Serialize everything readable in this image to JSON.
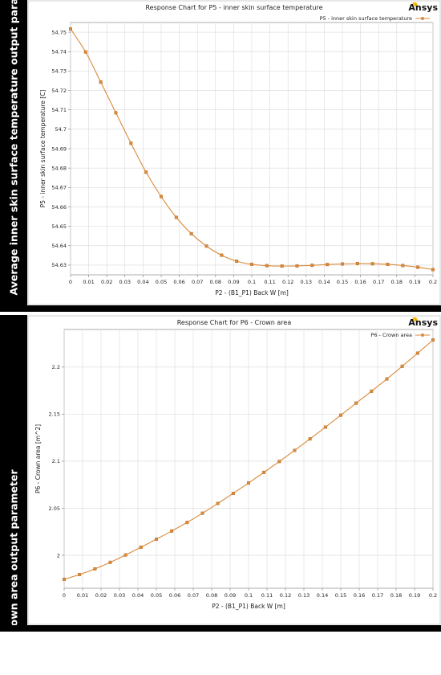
{
  "side_labels": {
    "top": "Average inner skin surface temperature output parameter",
    "bottom": "Crown area output parameter"
  },
  "brand": {
    "logo_text": "Ansys",
    "accent_color": "#f5b800"
  },
  "chart_data": [
    {
      "type": "line",
      "title": "Response Chart for P5 - inner skin surface temperature",
      "xlabel": "P2 - (B1_P1) Back W  [m]",
      "ylabel": "P5 - inner skin surface temperature  [C]",
      "xlim": [
        0,
        0.2
      ],
      "ylim": [
        54.625,
        54.755
      ],
      "xticks": [
        0,
        0.01,
        0.02,
        0.03,
        0.04,
        0.05,
        0.06,
        0.07,
        0.08,
        0.09,
        0.1,
        0.11,
        0.12,
        0.13,
        0.14,
        0.15,
        0.16,
        0.17,
        0.18,
        0.19,
        0.2
      ],
      "xtick_labels": [
        "0",
        "0.01",
        "0.02",
        "0.03",
        "0.04",
        "0.05",
        "0.06",
        "0.07",
        "0.08",
        "0.09",
        "0.1",
        "0.11",
        "0.12",
        "0.13",
        "0.14",
        "0.15",
        "0.16",
        "0.17",
        "0.18",
        "0.19",
        "0.2"
      ],
      "yticks": [
        54.63,
        54.64,
        54.65,
        54.66,
        54.67,
        54.68,
        54.69,
        54.7,
        54.71,
        54.72,
        54.73,
        54.74,
        54.75
      ],
      "ytick_labels": [
        "54.63",
        "54.64",
        "54.65",
        "54.66",
        "54.67",
        "54.68",
        "54.69",
        "54.7",
        "54.71",
        "54.72",
        "54.73",
        "54.74",
        "54.75"
      ],
      "grid": true,
      "legend_position": "top-right",
      "color": "#d98a3a",
      "series": [
        {
          "name": "P5 - inner skin surface temperature",
          "x": [
            0,
            0.00833,
            0.01667,
            0.025,
            0.03333,
            0.04167,
            0.05,
            0.05833,
            0.06667,
            0.075,
            0.08333,
            0.09167,
            0.1,
            0.10833,
            0.11667,
            0.125,
            0.13333,
            0.14167,
            0.15,
            0.15833,
            0.16667,
            0.175,
            0.18333,
            0.19167,
            0.2
          ],
          "y": [
            54.7517,
            54.7398,
            54.7243,
            54.7085,
            54.6928,
            54.6779,
            54.6653,
            54.6546,
            54.6462,
            54.6398,
            54.6351,
            54.632,
            54.6304,
            54.6297,
            54.6295,
            54.6296,
            54.6299,
            54.6303,
            54.6306,
            54.6308,
            54.6307,
            54.6304,
            54.6298,
            54.6289,
            54.6277
          ]
        }
      ]
    },
    {
      "type": "line",
      "title": "Response Chart for P6 - Crown area",
      "xlabel": "P2 - (B1_P1) Back W  [m]",
      "ylabel": "P6 - Crown area  [m^2]",
      "xlim": [
        0,
        0.2
      ],
      "ylim": [
        1.965,
        2.24
      ],
      "xticks": [
        0,
        0.01,
        0.02,
        0.03,
        0.04,
        0.05,
        0.06,
        0.07,
        0.08,
        0.09,
        0.1,
        0.11,
        0.12,
        0.13,
        0.14,
        0.15,
        0.16,
        0.17,
        0.18,
        0.19,
        0.2
      ],
      "xtick_labels": [
        "0",
        "0.01",
        "0.02",
        "0.03",
        "0.04",
        "0.05",
        "0.06",
        "0.07",
        "0.08",
        "0.09",
        "0.1",
        "0.11",
        "0.12",
        "0.13",
        "0.14",
        "0.15",
        "0.16",
        "0.17",
        "0.18",
        "0.19",
        "0.2"
      ],
      "yticks": [
        2,
        2.05,
        2.1,
        2.15,
        2.2
      ],
      "ytick_labels": [
        "2",
        "2.05",
        "2.1",
        "2.15",
        "2.2"
      ],
      "grid": true,
      "legend_position": "top-right",
      "color": "#d98a3a",
      "series": [
        {
          "name": "P6 - Crown area",
          "x": [
            0,
            0.00833,
            0.01667,
            0.025,
            0.03333,
            0.04167,
            0.05,
            0.05833,
            0.06667,
            0.075,
            0.08333,
            0.09167,
            0.1,
            0.10833,
            0.11667,
            0.125,
            0.13333,
            0.14167,
            0.15,
            0.15833,
            0.16667,
            0.175,
            0.18333,
            0.19167,
            0.2
          ],
          "y": [
            1.9745,
            1.9795,
            1.9855,
            1.9925,
            2.0003,
            2.0086,
            2.0171,
            2.0258,
            2.0349,
            2.0447,
            2.0551,
            2.0658,
            2.0768,
            2.0881,
            2.0997,
            2.1115,
            2.1237,
            2.1362,
            2.1489,
            2.1617,
            2.1744,
            2.1874,
            2.2009,
            2.2148,
            2.2288
          ]
        }
      ]
    }
  ]
}
